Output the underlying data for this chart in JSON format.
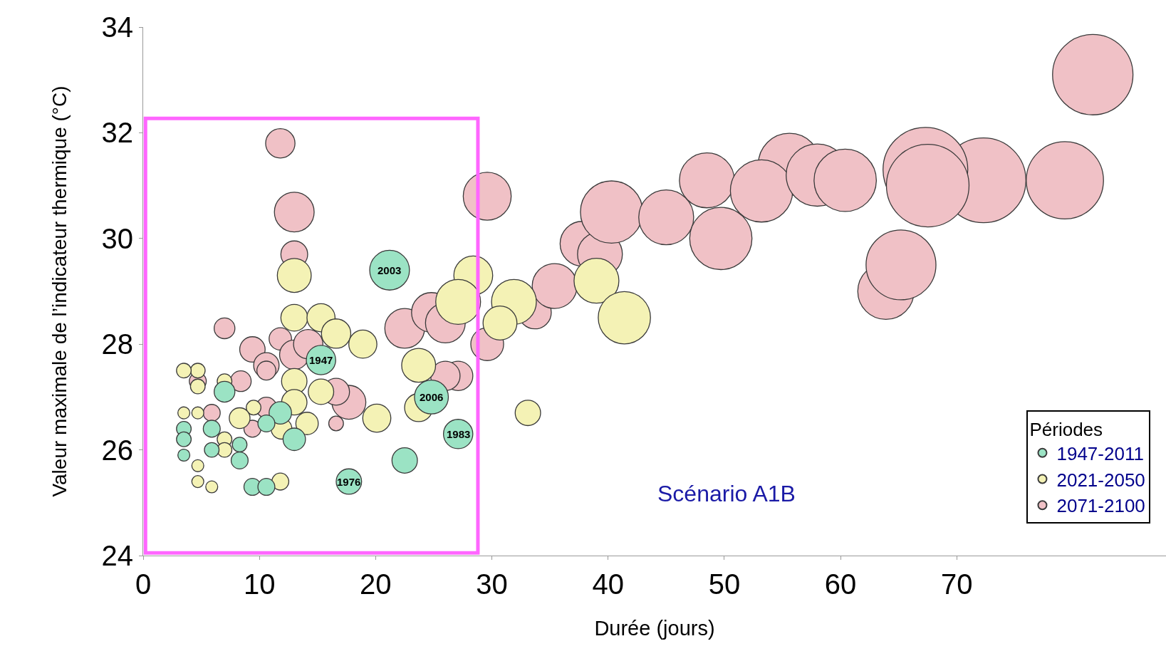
{
  "chart_data": {
    "type": "bubble",
    "xlabel": "Durée (jours)",
    "ylabel": "Valeur maximale de l’indicateur thermique (°C)",
    "legend_title": "Périodes",
    "legend": "bottom right",
    "annotations": [
      "Scénario A1B",
      {
        "text": "2003",
        "x": 21.2,
        "y": 29.4
      },
      {
        "text": "1947",
        "x": 15.3,
        "y": 27.7
      },
      {
        "text": "2006",
        "x": 24.8,
        "y": 27.0
      },
      {
        "text": "1983",
        "x": 27.1,
        "y": 26.3
      },
      {
        "text": "1976",
        "x": 17.7,
        "y": 25.4
      }
    ],
    "xlim": [
      0,
      88
    ],
    "xticks": [
      0,
      10,
      20,
      30,
      40,
      50,
      60,
      70
    ],
    "ylim": [
      24,
      34
    ],
    "yticks": [
      24,
      26,
      28,
      30,
      32,
      34
    ],
    "series": [
      {
        "name": "1947-2011",
        "color": "#9be3c4",
        "x": [
          21.2,
          15.3,
          24.8,
          27.1,
          17.7,
          22.5,
          13.0,
          11.8,
          10.6,
          7.0,
          5.9,
          5.9,
          3.5,
          3.5,
          3.5,
          8.3,
          8.3,
          9.4,
          10.6
        ],
        "values": [
          29.4,
          27.7,
          27.0,
          26.3,
          25.4,
          25.8,
          26.2,
          26.7,
          26.5,
          27.1,
          26.4,
          26.0,
          26.4,
          26.2,
          25.9,
          26.1,
          25.8,
          25.3,
          25.3
        ],
        "sizes": [
          0.22,
          0.12,
          0.16,
          0.12,
          0.09,
          0.09,
          0.07,
          0.07,
          0.04,
          0.06,
          0.04,
          0.03,
          0.03,
          0.03,
          0.02,
          0.03,
          0.04,
          0.04,
          0.04
        ]
      },
      {
        "name": "2021-2050",
        "color": "#f4f2b5",
        "x": [
          13.0,
          13.0,
          15.3,
          16.6,
          18.9,
          23.7,
          23.7,
          20.1,
          15.3,
          13.0,
          13.0,
          11.9,
          14.1,
          9.5,
          8.3,
          7.0,
          4.7,
          3.5,
          4.7,
          3.5,
          4.7,
          7.0,
          7.0,
          4.7,
          4.7,
          5.9,
          11.8,
          28.4,
          27.1,
          31.9,
          30.7,
          33.1,
          39.0,
          41.4
        ],
        "values": [
          29.3,
          28.5,
          28.5,
          28.2,
          28.0,
          27.6,
          26.8,
          26.6,
          27.1,
          27.3,
          26.9,
          26.4,
          26.5,
          26.8,
          26.6,
          27.3,
          27.5,
          27.5,
          27.2,
          26.7,
          26.7,
          26.2,
          26.0,
          25.7,
          25.4,
          25.3,
          25.4,
          29.3,
          28.8,
          28.8,
          28.4,
          26.7,
          29.2,
          28.5
        ],
        "sizes": [
          0.16,
          0.1,
          0.11,
          0.12,
          0.11,
          0.16,
          0.11,
          0.11,
          0.09,
          0.09,
          0.09,
          0.06,
          0.07,
          0.03,
          0.06,
          0.03,
          0.03,
          0.03,
          0.03,
          0.02,
          0.02,
          0.03,
          0.03,
          0.02,
          0.02,
          0.02,
          0.04,
          0.21,
          0.28,
          0.28,
          0.16,
          0.09,
          0.28,
          0.38
        ]
      },
      {
        "name": "2071-2100",
        "color": "#f0c1c6",
        "x": [
          11.8,
          13.0,
          13.0,
          7.0,
          9.4,
          11.8,
          10.6,
          10.6,
          13.0,
          14.2,
          8.4,
          4.7,
          5.9,
          9.4,
          10.6,
          17.7,
          16.6,
          16.6,
          22.5,
          24.8,
          26.0,
          27.1,
          26.0,
          29.6,
          29.6,
          33.7,
          35.4,
          37.8,
          39.3,
          40.3,
          45.0,
          48.5,
          49.7,
          55.6,
          53.2,
          58.0,
          60.4,
          63.9,
          65.2,
          72.3,
          67.3,
          67.5,
          79.3,
          81.7
        ],
        "values": [
          31.8,
          30.5,
          29.7,
          28.3,
          27.9,
          28.1,
          27.6,
          27.5,
          27.8,
          28.0,
          27.3,
          27.3,
          26.7,
          26.4,
          26.8,
          26.9,
          27.1,
          26.5,
          28.3,
          28.6,
          28.4,
          27.4,
          27.4,
          30.8,
          28.0,
          28.6,
          29.1,
          29.9,
          29.7,
          30.5,
          30.4,
          31.1,
          30.0,
          31.4,
          30.9,
          31.2,
          31.1,
          29.0,
          29.5,
          31.1,
          31.3,
          31.0,
          31.1,
          33.1
        ],
        "sizes": [
          0.12,
          0.22,
          0.1,
          0.06,
          0.09,
          0.07,
          0.09,
          0.05,
          0.12,
          0.12,
          0.06,
          0.04,
          0.04,
          0.04,
          0.06,
          0.16,
          0.1,
          0.03,
          0.22,
          0.22,
          0.22,
          0.12,
          0.12,
          0.32,
          0.15,
          0.15,
          0.28,
          0.28,
          0.28,
          0.54,
          0.42,
          0.42,
          0.54,
          0.54,
          0.54,
          0.54,
          0.54,
          0.44,
          0.68,
          1.0,
          1.0,
          0.95,
          0.83,
          0.9
        ]
      }
    ]
  }
}
